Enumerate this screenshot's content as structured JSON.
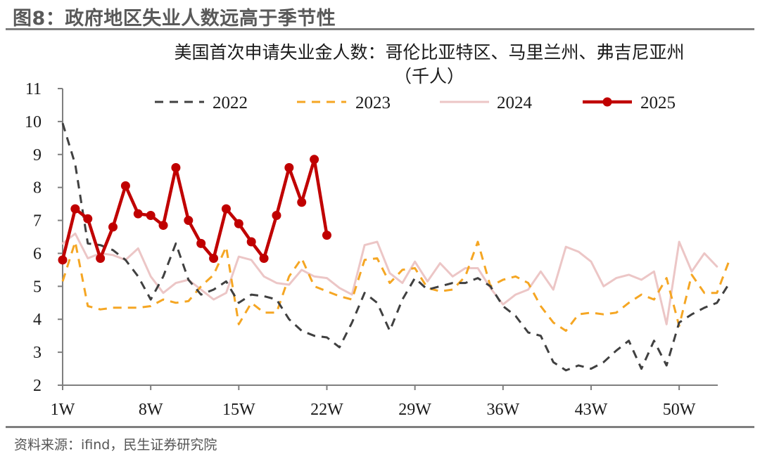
{
  "figure_title": "图8：政府地区失业人数远高于季节性",
  "source": "资料来源：ifind，民生证券研究院",
  "chart_data": {
    "type": "line",
    "title": "美国首次申请失业金人数：哥伦比亚特区、马里兰州、弗吉尼亚州（千人）",
    "title_lines": [
      "美国首次申请失业金人数：哥伦比亚特区、马里兰州、弗吉尼亚州",
      "（千人）"
    ],
    "xlabel": "",
    "ylabel": "",
    "xlim": [
      1,
      53
    ],
    "ylim": [
      2,
      11
    ],
    "yticks": [
      "2",
      "3",
      "4",
      "5",
      "6",
      "7",
      "8",
      "9",
      "10",
      "11"
    ],
    "xtick_weeks": [
      1,
      8,
      15,
      22,
      29,
      36,
      43,
      50
    ],
    "xticks": [
      "1W",
      "8W",
      "15W",
      "22W",
      "29W",
      "36W",
      "43W",
      "50W"
    ],
    "legend_position": "top",
    "grid": false,
    "series": [
      {
        "name": "2022",
        "style": "dashed",
        "color": "#404040",
        "values": [
          9.95,
          8.7,
          6.3,
          6.25,
          6.1,
          5.8,
          5.3,
          4.6,
          5.3,
          6.3,
          5.2,
          4.75,
          4.9,
          5.15,
          4.5,
          4.75,
          4.7,
          4.6,
          4.0,
          3.65,
          3.5,
          3.45,
          3.15,
          3.9,
          4.8,
          4.5,
          3.65,
          4.6,
          5.25,
          4.9,
          5.0,
          5.1,
          5.1,
          5.25,
          5.0,
          4.4,
          4.1,
          3.6,
          3.5,
          2.7,
          2.45,
          2.6,
          2.5,
          2.7,
          3.05,
          3.35,
          2.5,
          3.35,
          2.6,
          3.9,
          4.15,
          4.35,
          4.5,
          5.1
        ]
      },
      {
        "name": "2023",
        "style": "dashed",
        "color": "#f5a623",
        "values": [
          5.15,
          6.35,
          4.4,
          4.3,
          4.35,
          4.35,
          4.35,
          4.4,
          4.6,
          4.5,
          4.55,
          5.0,
          5.35,
          6.2,
          3.85,
          4.5,
          4.2,
          4.2,
          5.3,
          5.85,
          5.0,
          4.85,
          4.7,
          4.6,
          5.8,
          5.85,
          5.1,
          5.5,
          5.55,
          4.95,
          4.85,
          4.9,
          5.3,
          6.35,
          5.0,
          5.2,
          5.3,
          5.1,
          4.4,
          3.9,
          3.65,
          4.15,
          4.2,
          4.15,
          4.2,
          4.5,
          4.75,
          4.6,
          5.25,
          3.8,
          5.35,
          4.8,
          4.8,
          5.8
        ]
      },
      {
        "name": "2024",
        "style": "solid",
        "color": "#ecc6c6",
        "values": [
          6.3,
          6.6,
          5.85,
          6.0,
          5.95,
          5.8,
          6.15,
          5.3,
          4.8,
          5.1,
          5.2,
          4.9,
          4.6,
          4.8,
          5.9,
          5.8,
          5.3,
          5.1,
          5.05,
          5.5,
          5.3,
          5.25,
          4.95,
          4.75,
          6.25,
          6.35,
          5.4,
          5.1,
          5.75,
          5.15,
          5.7,
          5.3,
          5.55,
          5.55,
          4.95,
          4.45,
          4.75,
          4.9,
          5.45,
          4.9,
          6.2,
          6.05,
          5.75,
          5.0,
          5.25,
          5.35,
          5.2,
          5.45,
          3.85,
          6.35,
          5.45,
          6.0,
          5.6
        ]
      },
      {
        "name": "2025",
        "style": "solid-marker",
        "color": "#c00000",
        "values": [
          5.8,
          7.35,
          7.05,
          5.85,
          6.8,
          8.05,
          7.2,
          7.15,
          6.85,
          8.6,
          7.0,
          6.3,
          5.85,
          7.35,
          6.9,
          6.35,
          5.85,
          7.15,
          8.6,
          7.55,
          8.85,
          6.55
        ]
      }
    ]
  }
}
